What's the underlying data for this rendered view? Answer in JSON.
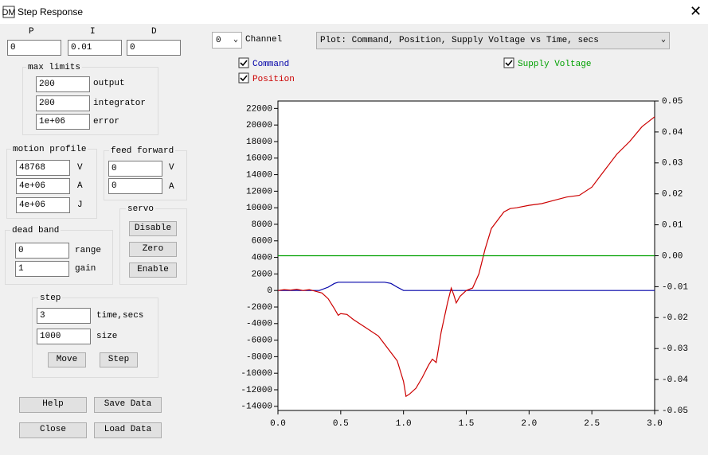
{
  "window": {
    "title": "Step Response"
  },
  "pid": {
    "fields": [
      {
        "label": "P",
        "value": "0"
      },
      {
        "label": "I",
        "value": "0.01"
      },
      {
        "label": "D",
        "value": "0"
      }
    ]
  },
  "max_limits": {
    "title": "max limits",
    "fields": [
      {
        "value": "200",
        "label": "output"
      },
      {
        "value": "200",
        "label": "integrator"
      },
      {
        "value": "1e+06",
        "label": "error"
      }
    ]
  },
  "motion_profile": {
    "title": "motion profile",
    "fields": [
      {
        "value": "48768",
        "label": "V"
      },
      {
        "value": "4e+06",
        "label": "A"
      },
      {
        "value": "4e+06",
        "label": "J"
      }
    ]
  },
  "feed_forward": {
    "title": "feed forward",
    "fields": [
      {
        "value": "0",
        "label": "V"
      },
      {
        "value": "0",
        "label": "A"
      }
    ]
  },
  "servo": {
    "title": "servo",
    "buttons": [
      "Disable",
      "Zero",
      "Enable"
    ]
  },
  "dead_band": {
    "title": "dead band",
    "fields": [
      {
        "value": "0",
        "label": "range"
      },
      {
        "value": "1",
        "label": "gain"
      }
    ]
  },
  "step": {
    "title": "step",
    "fields": [
      {
        "value": "3",
        "label": "time,secs"
      },
      {
        "value": "1000",
        "label": "size"
      }
    ],
    "buttons": [
      "Move",
      "Step"
    ]
  },
  "buttons": [
    "Help",
    "Save Data",
    "Close",
    "Load Data"
  ],
  "channel": {
    "value": "0",
    "label": "Channel"
  },
  "plot_select": {
    "value": "Plot: Command, Position, Supply Voltage vs Time, secs"
  },
  "chart_data": {
    "type": "line",
    "xlim": [
      0,
      3
    ],
    "xticks": [
      {
        "value": 0,
        "label": "0.0"
      },
      0.5,
      {
        "value": 1,
        "label": "1.0"
      },
      1.5,
      {
        "value": 2,
        "label": "2.0"
      },
      2.5,
      {
        "value": 3,
        "label": "3.0"
      }
    ],
    "ylim": [
      -14500,
      22900
    ],
    "yticks": [
      22000,
      20000,
      18000,
      16000,
      14000,
      12000,
      10000,
      8000,
      6000,
      4000,
      2000,
      0,
      -2000,
      -4000,
      -6000,
      -8000,
      -10000,
      -12000,
      -14000
    ],
    "y2lim": [
      -0.05,
      0.05
    ],
    "y2ticks": [
      0.05,
      0.04,
      0.03,
      0.02,
      0.01,
      {
        "value": 0,
        "label": "0.00"
      },
      -0.01,
      -0.02,
      -0.03,
      -0.04,
      -0.05
    ],
    "series": [
      {
        "name": "Command",
        "color": "#0000a8",
        "checked": true,
        "x": [
          0,
          0.33,
          0.4,
          0.45,
          0.48,
          0.85,
          0.9,
          0.95,
          1.0,
          3.0
        ],
        "values": [
          0,
          0,
          400,
          850,
          1000,
          1000,
          850,
          400,
          0,
          0
        ]
      },
      {
        "name": "Position",
        "color": "#cc0000",
        "checked": true,
        "x": [
          0,
          0.05,
          0.1,
          0.15,
          0.2,
          0.25,
          0.3,
          0.35,
          0.4,
          0.45,
          0.48,
          0.5,
          0.55,
          0.6,
          0.7,
          0.8,
          0.85,
          0.9,
          0.95,
          1.0,
          1.02,
          1.05,
          1.1,
          1.15,
          1.2,
          1.23,
          1.26,
          1.3,
          1.35,
          1.38,
          1.4,
          1.42,
          1.45,
          1.5,
          1.55,
          1.6,
          1.65,
          1.7,
          1.75,
          1.8,
          1.85,
          1.9,
          2.0,
          2.1,
          2.2,
          2.3,
          2.4,
          2.5,
          2.6,
          2.7,
          2.8,
          2.9,
          3.0
        ],
        "values": [
          0,
          100,
          50,
          150,
          0,
          100,
          -100,
          -300,
          -1000,
          -2200,
          -3000,
          -2800,
          -2900,
          -3500,
          -4500,
          -5500,
          -6500,
          -7500,
          -8500,
          -11000,
          -12800,
          -12500,
          -11800,
          -10500,
          -9000,
          -8300,
          -8700,
          -5000,
          -1500,
          300,
          -500,
          -1500,
          -700,
          0,
          300,
          2000,
          5000,
          7500,
          8500,
          9500,
          9900,
          10000,
          10300,
          10500,
          10900,
          11300,
          11500,
          12500,
          14500,
          16500,
          18000,
          19800,
          21000
        ]
      },
      {
        "name": "Supply Voltage",
        "color": "#00a000",
        "checked": true,
        "axis": "y2",
        "x": [
          0,
          3
        ],
        "values": [
          0,
          0
        ]
      }
    ]
  }
}
